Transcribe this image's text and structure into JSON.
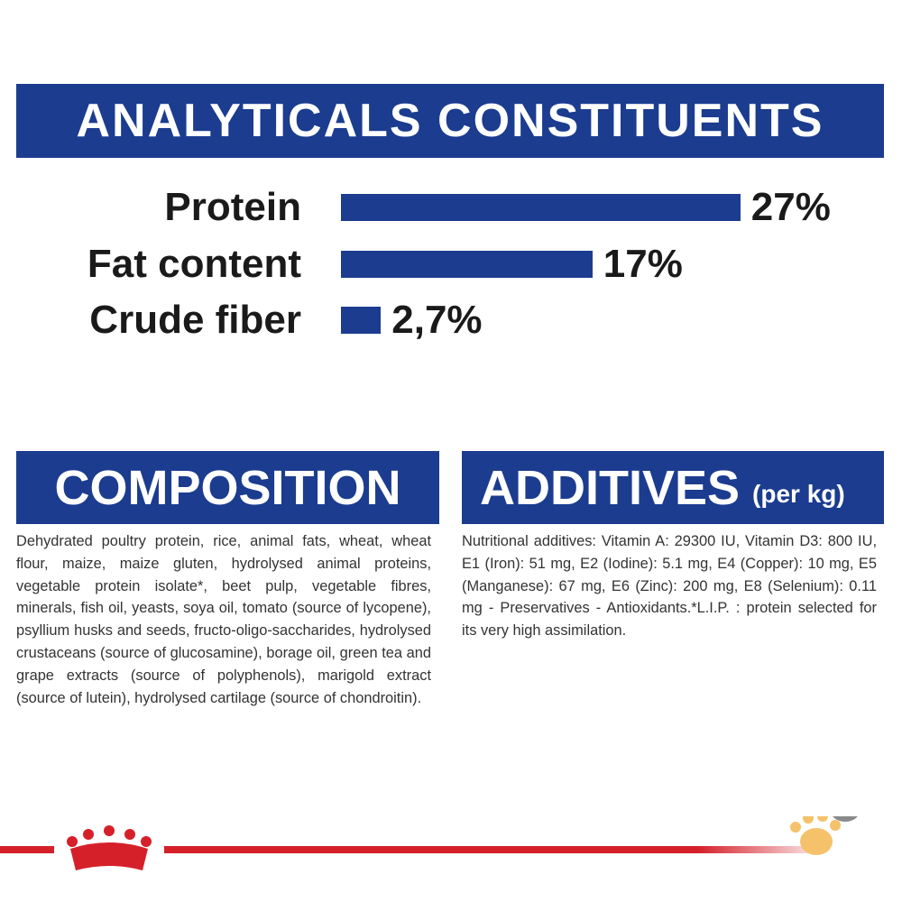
{
  "chart_data": {
    "type": "bar",
    "title": "ANALYTICALS CONSTITUENTS",
    "categories": [
      "Protein",
      "Fat content",
      "Crude fiber"
    ],
    "values": [
      27,
      17,
      2.7
    ],
    "value_labels": [
      "27%",
      "17%",
      "2,7%"
    ],
    "color": "#1b3c8f"
  },
  "composition": {
    "title": "COMPOSITION",
    "text": "Dehydrated poultry protein, rice, animal fats, wheat, wheat flour, maize, maize gluten, hydrolysed animal proteins, vegetable protein isolate*, beet pulp, vegetable fibres, minerals, fish oil, yeasts, soya oil, tomato (source of lycopene), psyllium husks and seeds, fructo-oligo-saccharides, hydrolysed crustaceans (source of glucosamine), borage oil, green tea and grape extracts (source of polyphenols), marigold extract (source of lutein), hydrolysed cartilage (source of chondroitin)."
  },
  "additives": {
    "title": "ADDITIVES",
    "unit": "(per kg)",
    "text": "Nutritional additives: Vitamin A: 29300 IU, Vitamin D3: 800 IU, E1 (Iron): 51 mg, E2 (Iodine): 5.1 mg, E4 (Copper): 10 mg, E5 (Manganese): 67 mg, E6 (Zinc): 200 mg, E8 (Selenium): 0.11 mg - Preservatives - Antioxidants.*L.I.P. : protein selected for its very high assimilation."
  }
}
